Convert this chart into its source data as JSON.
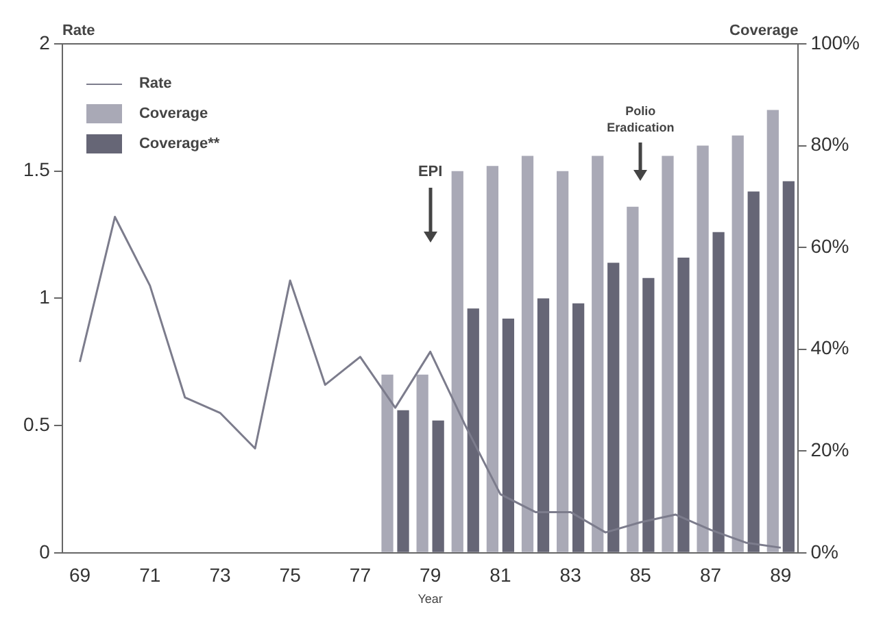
{
  "chart_data": {
    "type": "bar",
    "xlabel": "Year",
    "ylabel": "Rate",
    "y2label": "Coverage",
    "categories": [
      "69",
      null,
      "71",
      null,
      "73",
      null,
      "75",
      null,
      "77",
      null,
      "79",
      null,
      "81",
      null,
      "83",
      null,
      "85",
      null,
      "87",
      null,
      "89"
    ],
    "series": [
      {
        "name": "Rate",
        "type": "line",
        "color": "#7c7c8c",
        "values": [
          0.75,
          1.32,
          1.05,
          0.61,
          0.55,
          0.41,
          1.07,
          0.66,
          0.77,
          0.57,
          0.79,
          0.5,
          0.23,
          0.16,
          0.16,
          0.08,
          0.12,
          0.15,
          0.09,
          0.04,
          0.02
        ]
      },
      {
        "name": "Coverage",
        "axis": "y2",
        "color": "#a9a9b6",
        "values": [
          null,
          null,
          null,
          null,
          null,
          null,
          null,
          null,
          null,
          35,
          35,
          75,
          76,
          78,
          75,
          78,
          68,
          78,
          80,
          82,
          87
        ]
      },
      {
        "name": "Coverage**",
        "axis": "y2",
        "color": "#666676",
        "values": [
          null,
          null,
          null,
          null,
          null,
          null,
          null,
          null,
          null,
          28,
          26,
          48,
          46,
          50,
          49,
          57,
          54,
          58,
          63,
          71,
          73
        ]
      }
    ],
    "ylim": [
      0,
      2
    ],
    "yticks": [
      0,
      0.5,
      1,
      1.5,
      2
    ],
    "y2lim": [
      0,
      100
    ],
    "y2ticks": [
      {
        "value": 0,
        "label": "0%"
      },
      {
        "value": 20,
        "label": "20%"
      },
      {
        "value": 40,
        "label": "40%"
      },
      {
        "value": 60,
        "label": "60%"
      },
      {
        "value": 80,
        "label": "80%"
      },
      {
        "value": 100,
        "label": "100%"
      }
    ],
    "annotations": [
      {
        "text": "EPI",
        "x": "79"
      },
      {
        "text": "Polio\nEradication",
        "x": "85"
      }
    ],
    "legend": "top left",
    "grid": false,
    "marker": "none",
    "line_style": "solid"
  }
}
